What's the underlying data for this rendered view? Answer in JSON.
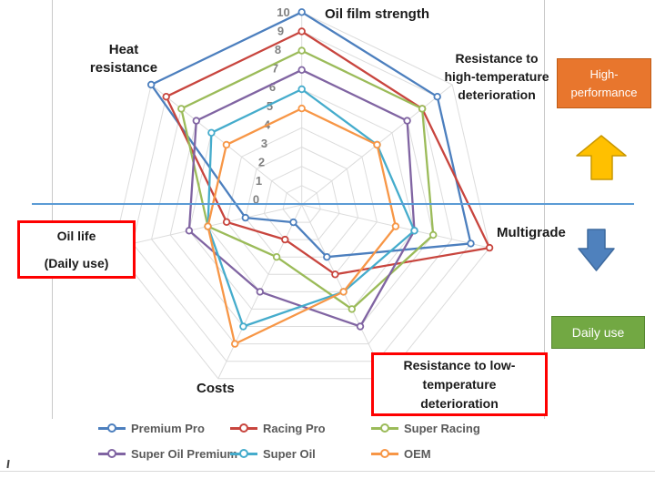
{
  "chart_data": {
    "type": "radar",
    "title": "",
    "grid": true,
    "legend_position": "bottom",
    "scale": {
      "min": 0,
      "max": 10,
      "tick_labels": [
        "0",
        "1",
        "2",
        "3",
        "4",
        "5",
        "6",
        "7",
        "8",
        "9",
        "10"
      ]
    },
    "axes": [
      {
        "label": "Oil film strength",
        "lines": [
          "Oil film strength"
        ],
        "boxed": false
      },
      {
        "label": "Resistance to high-temperature deterioration",
        "lines": [
          "Resistance to",
          "high-temperature",
          "deterioration"
        ],
        "boxed": false
      },
      {
        "label": "Multigrade",
        "lines": [
          "Multigrade"
        ],
        "boxed": false
      },
      {
        "label": "Resistance to low-temperature deterioration",
        "lines": [
          "Resistance to low-",
          "temperature",
          "deterioration"
        ],
        "boxed": true
      },
      {
        "label": "Costs",
        "lines": [
          "Costs"
        ],
        "boxed": false
      },
      {
        "label": "Oil life (Daily use)",
        "lines": [
          "Oil life",
          "(Daily use)"
        ],
        "boxed": true
      },
      {
        "label": "Heat resistance",
        "lines": [
          "Heat",
          "resistance"
        ],
        "boxed": false
      }
    ],
    "series": [
      {
        "name": "Premium Pro",
        "color": "#4c7fbe",
        "values": [
          10,
          9,
          9,
          3,
          1,
          3,
          10
        ]
      },
      {
        "name": "Racing Pro",
        "color": "#c8453e",
        "values": [
          9,
          8,
          10,
          4,
          2,
          4,
          9
        ]
      },
      {
        "name": "Super Racing",
        "color": "#9bbb59",
        "values": [
          8,
          8,
          7,
          6,
          3,
          5,
          8
        ]
      },
      {
        "name": "Super Oil Premium",
        "color": "#8064a2",
        "values": [
          7,
          7,
          6,
          7,
          5,
          6,
          7
        ]
      },
      {
        "name": "Super Oil",
        "color": "#45accc",
        "values": [
          6,
          5,
          6,
          5,
          7,
          5,
          6
        ]
      },
      {
        "name": "OEM",
        "color": "#f79646",
        "values": [
          5,
          5,
          5,
          5,
          8,
          5,
          5
        ]
      }
    ]
  },
  "annotations": {
    "high_performance": {
      "lines": [
        "High-",
        "performance"
      ],
      "bg": "#e8762d"
    },
    "daily_use_label": "Daily use",
    "daily_use_bg": "#72a843",
    "divider_line_color": "#5b9bd5",
    "up_arrow_color": "#ffc000",
    "down_arrow_color": "#4f81bd",
    "callout_border_color": "#fe0000"
  }
}
